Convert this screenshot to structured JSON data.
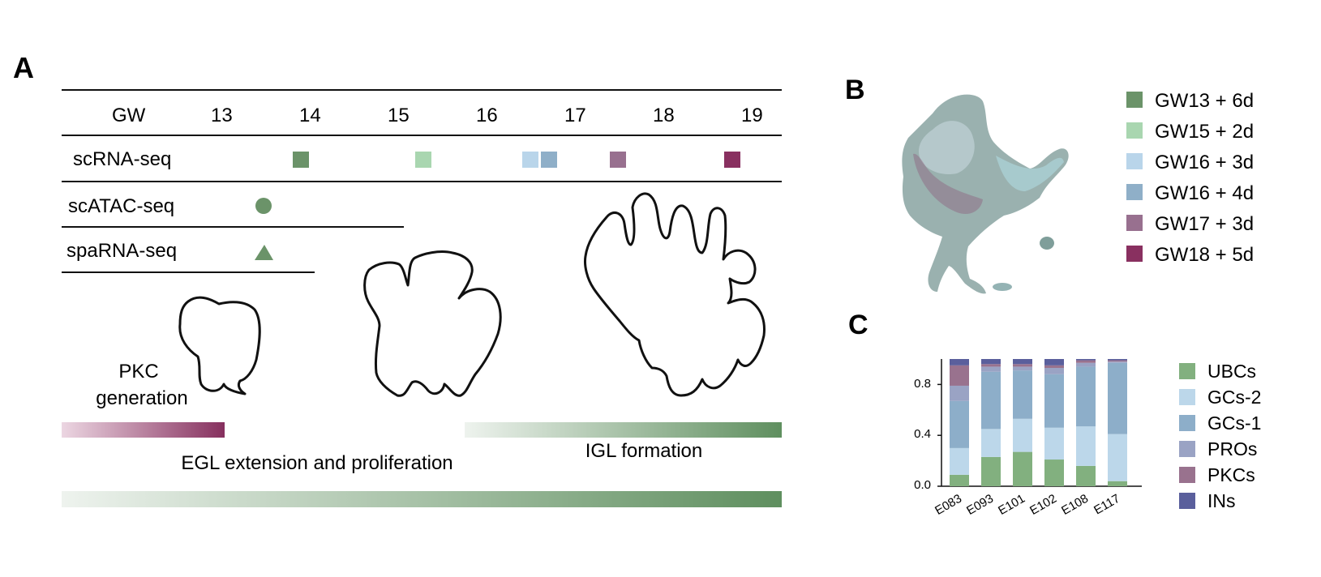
{
  "panels": {
    "a": "A",
    "b": "B",
    "c": "C"
  },
  "timeline": {
    "axis_label": "GW",
    "weeks": [
      "13",
      "14",
      "15",
      "16",
      "17",
      "18",
      "19"
    ],
    "assays": [
      {
        "name": "scRNA-seq"
      },
      {
        "name": "scATAC-seq"
      },
      {
        "name": "spaRNA-seq"
      }
    ],
    "stages": {
      "pkc_line1": "PKC",
      "pkc_line2": "generation",
      "igl": "IGL formation",
      "egl": "EGL extension and proliferation"
    }
  },
  "colors": {
    "gw13": "#6b9369",
    "gw15": "#a9d6b0",
    "gw16a": "#b9d5ea",
    "gw16b": "#8fafc8",
    "gw17": "#98708f",
    "gw18": "#893060",
    "ubc": "#82b07f",
    "gcs2": "#bcd7ea",
    "gcs1": "#8daec9",
    "pros": "#9aa3c4",
    "pkcs": "#99728e",
    "ins": "#5a5f9c",
    "green_dark": "#5f8f5f",
    "pink_dark": "#86305e"
  },
  "umap_legend": [
    {
      "label": "GW13 + 6d",
      "color": "#6b9369"
    },
    {
      "label": "GW15 + 2d",
      "color": "#a9d6b0"
    },
    {
      "label": "GW16 + 3d",
      "color": "#b9d5ea"
    },
    {
      "label": "GW16 + 4d",
      "color": "#8fafc8"
    },
    {
      "label": "GW17 + 3d",
      "color": "#98708f"
    },
    {
      "label": "GW18 + 5d",
      "color": "#893060"
    }
  ],
  "chart_data": {
    "type": "bar",
    "stacked": true,
    "categories": [
      "E083",
      "E093",
      "E101",
      "E102",
      "E108",
      "E117"
    ],
    "ylim": [
      0,
      1.0
    ],
    "yticks": [
      "0.0",
      "0.4",
      "0.8"
    ],
    "series": [
      {
        "name": "UBCs",
        "color": "#82b07f",
        "values": [
          0.09,
          0.23,
          0.27,
          0.21,
          0.16,
          0.04
        ]
      },
      {
        "name": "GCs-2",
        "color": "#bcd7ea",
        "values": [
          0.21,
          0.22,
          0.26,
          0.25,
          0.31,
          0.37
        ]
      },
      {
        "name": "GCs-1",
        "color": "#8daec9",
        "values": [
          0.37,
          0.45,
          0.38,
          0.42,
          0.47,
          0.56
        ]
      },
      {
        "name": "PROs",
        "color": "#9aa3c4",
        "values": [
          0.12,
          0.04,
          0.03,
          0.05,
          0.03,
          0.01
        ]
      },
      {
        "name": "PKCs",
        "color": "#99728e",
        "values": [
          0.16,
          0.02,
          0.02,
          0.02,
          0.02,
          0.01
        ]
      },
      {
        "name": "INs",
        "color": "#5a5f9c",
        "values": [
          0.05,
          0.04,
          0.04,
          0.05,
          0.01,
          0.01
        ]
      }
    ]
  }
}
